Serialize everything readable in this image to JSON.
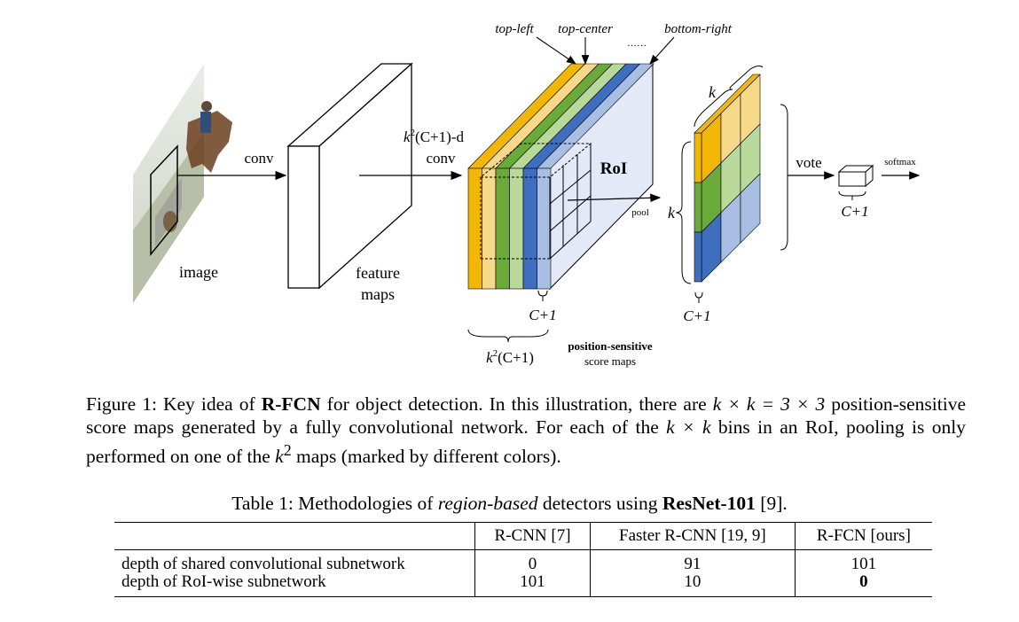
{
  "figure": {
    "labels": {
      "conv": "conv",
      "image": "image",
      "feature_maps_1": "feature",
      "feature_maps_2": "maps",
      "kc1d_suffix": "(C+1)-d",
      "conv2": "conv",
      "top_left": "top-left",
      "top_center": "top-center",
      "bottom_right": "bottom-right",
      "ellipsis": "……",
      "roi": "RoI",
      "pool": "pool",
      "k_top": "k",
      "k_side": "k",
      "c1_stack": "C+1",
      "c1_vote": "C+1",
      "c1_out": "C+1",
      "vote": "vote",
      "softmax": "softmax",
      "k2c1_suffix": "(C+1)",
      "pos_sens_1": "position-sensitive",
      "pos_sens_2": "score maps"
    },
    "map_colors": [
      "#f2b705",
      "#f7d98a",
      "#6aaa3a",
      "#b9d99a",
      "#3e6fbf",
      "#a8bfe3"
    ]
  },
  "caption": {
    "prefix": "Figure 1: Key idea of ",
    "bold": "R-FCN",
    "rest1": " for object detection. In this illustration, there are ",
    "math1": "k × k = 3 × 3",
    "rest2": " position-sensitive score maps generated by a fully convolutional network. For each of the ",
    "math2": "k × k",
    "rest3": " bins in an RoI, pooling is only performed on one of the ",
    "math3": "k",
    "math3_sup": "2",
    "rest4": " maps (marked by different colors)."
  },
  "table": {
    "caption_prefix": "Table 1: Methodologies of ",
    "caption_italic": "region-based",
    "caption_mid": " detectors using ",
    "caption_bold": "ResNet-101",
    "caption_suffix": " [9].",
    "headers": [
      "",
      "R-CNN [7]",
      "Faster R-CNN [19, 9]",
      "R-FCN [ours]"
    ],
    "rows": [
      {
        "label": "depth of shared convolutional subnetwork",
        "values": [
          "0",
          "91",
          "101"
        ]
      },
      {
        "label": "depth of RoI-wise subnetwork",
        "values": [
          "101",
          "10",
          "0"
        ]
      }
    ]
  }
}
